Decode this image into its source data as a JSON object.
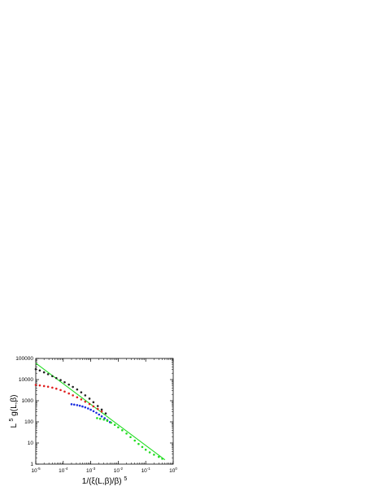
{
  "chart_data": {
    "type": "scatter",
    "title": "",
    "xlabel": "1/(ξ(L,β)/β)",
    "xlabel_sup": "5",
    "ylabel_pre": "L",
    "ylabel_sup": "5",
    "ylabel_post": "g(L,β)",
    "x_scale": "log",
    "y_scale": "log",
    "xlim": [
      1e-05,
      1
    ],
    "ylim": [
      1,
      100000
    ],
    "grid": false,
    "legend": "none",
    "x_ticks": [
      {
        "value": 1e-05,
        "mant": "10",
        "exp": "-5"
      },
      {
        "value": 0.0001,
        "mant": "10",
        "exp": "-4"
      },
      {
        "value": 0.001,
        "mant": "10",
        "exp": "-3"
      },
      {
        "value": 0.01,
        "mant": "10",
        "exp": "-2"
      },
      {
        "value": 0.1,
        "mant": "10",
        "exp": "-1"
      },
      {
        "value": 1,
        "mant": "10",
        "exp": "0"
      }
    ],
    "y_ticks": [
      {
        "value": 1,
        "label": "1"
      },
      {
        "value": 10,
        "label": "10"
      },
      {
        "value": 100,
        "label": "100"
      },
      {
        "value": 1000,
        "label": "1000"
      },
      {
        "value": 10000,
        "label": "10000"
      },
      {
        "value": 100000,
        "label": "100000"
      }
    ],
    "series": [
      {
        "color": "#222222",
        "marker": "circle",
        "points": [
          [
            1e-05,
            31000
          ],
          [
            1.4e-05,
            27000
          ],
          [
            2e-05,
            22000
          ],
          [
            2.8e-05,
            18000
          ],
          [
            4e-05,
            14500
          ],
          [
            5.6e-05,
            11800
          ],
          [
            8e-05,
            9500
          ],
          [
            0.000112,
            7500
          ],
          [
            0.00016,
            5800
          ],
          [
            0.000224,
            4500
          ],
          [
            0.00032,
            3400
          ],
          [
            0.00045,
            2500
          ],
          [
            0.00063,
            1800
          ],
          [
            0.0009,
            1250
          ],
          [
            0.00125,
            850
          ],
          [
            0.0018,
            560
          ],
          [
            0.0025,
            380
          ],
          [
            0.0035,
            250
          ]
        ]
      },
      {
        "color": "#e02020",
        "marker": "circle",
        "points": [
          [
            1e-05,
            5600
          ],
          [
            1.4e-05,
            5300
          ],
          [
            2e-05,
            4950
          ],
          [
            2.8e-05,
            4600
          ],
          [
            4e-05,
            4150
          ],
          [
            5.6e-05,
            3700
          ],
          [
            8e-05,
            3200
          ],
          [
            0.000112,
            2700
          ],
          [
            0.00016,
            2200
          ],
          [
            0.000224,
            1800
          ],
          [
            0.00032,
            1450
          ],
          [
            0.00045,
            1150
          ],
          [
            0.00063,
            900
          ],
          [
            0.0009,
            700
          ],
          [
            0.00125,
            540
          ],
          [
            0.0018,
            410
          ],
          [
            0.0025,
            310
          ]
        ]
      },
      {
        "color": "#1a2ee0",
        "marker": "circle",
        "points": [
          [
            0.0002,
            680
          ],
          [
            0.00025,
            655
          ],
          [
            0.00032,
            620
          ],
          [
            0.0004,
            580
          ],
          [
            0.0005,
            535
          ],
          [
            0.00063,
            485
          ],
          [
            0.0008,
            430
          ],
          [
            0.001,
            375
          ],
          [
            0.00126,
            320
          ],
          [
            0.0016,
            268
          ],
          [
            0.002,
            222
          ],
          [
            0.0025,
            182
          ],
          [
            0.0032,
            148
          ],
          [
            0.004,
            120
          ],
          [
            0.005,
            97
          ]
        ]
      },
      {
        "color": "#22dd22",
        "marker": "circle",
        "points": [
          [
            0.0017,
            150
          ],
          [
            0.0022,
            140
          ],
          [
            0.003,
            128
          ],
          [
            0.004,
            112
          ],
          [
            0.0055,
            92
          ],
          [
            0.0075,
            72
          ],
          [
            0.01,
            55
          ],
          [
            0.014,
            40
          ],
          [
            0.02,
            28
          ],
          [
            0.028,
            19
          ],
          [
            0.04,
            13
          ],
          [
            0.055,
            9
          ],
          [
            0.075,
            6.5
          ],
          [
            0.1,
            4.8
          ],
          [
            0.14,
            3.6
          ],
          [
            0.2,
            2.8
          ],
          [
            0.3,
            2.2
          ],
          [
            0.4,
            1.8
          ]
        ]
      }
    ],
    "fit_lines": [
      {
        "color": "#22dd22",
        "from": [
          1e-05,
          60000
        ],
        "to": [
          0.5,
          1.6
        ]
      }
    ]
  }
}
